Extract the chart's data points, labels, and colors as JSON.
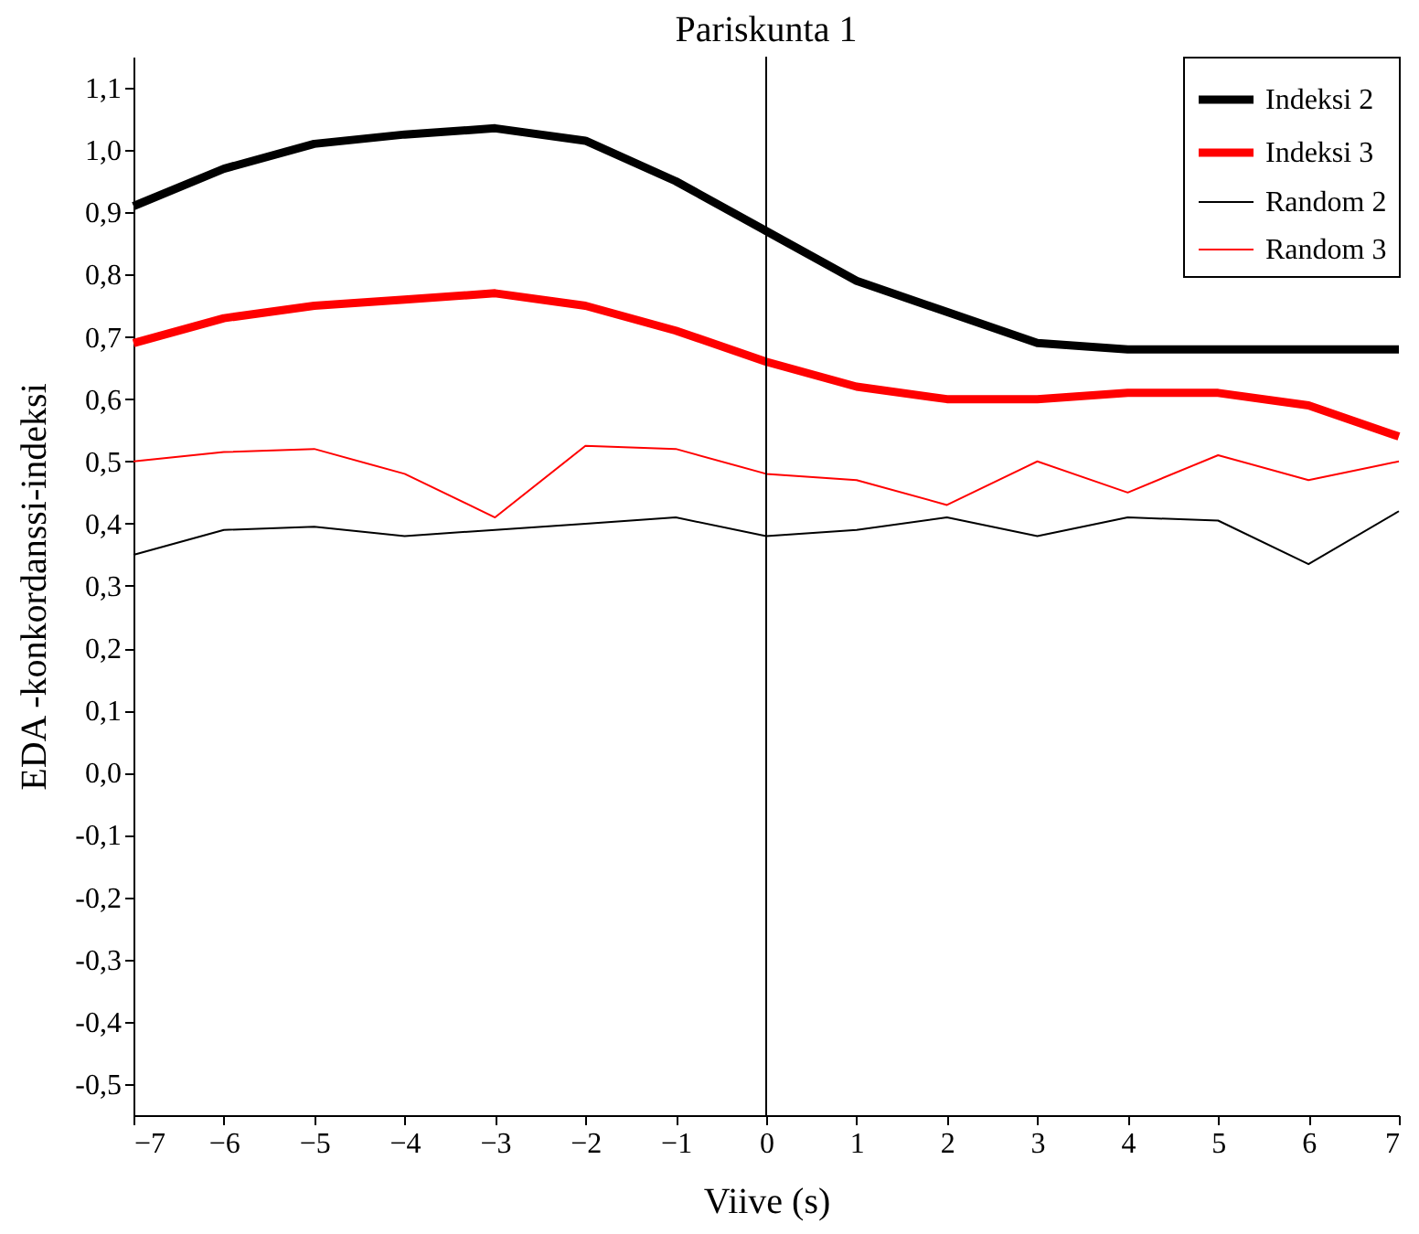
{
  "chart_data": {
    "type": "line",
    "title": "Pariskunta 1",
    "xlabel": "Viive (s)",
    "ylabel": "EDA -konkordanssi-indeksi",
    "x": [
      -7,
      -6,
      -5,
      -4,
      -3,
      -2,
      -1,
      0,
      1,
      2,
      3,
      4,
      5,
      6,
      7
    ],
    "series": [
      {
        "name": "Indeksi 2",
        "color": "#000000",
        "values": [
          0.91,
          0.97,
          1.01,
          1.025,
          1.035,
          1.015,
          0.95,
          0.87,
          0.79,
          0.74,
          0.69,
          0.68,
          0.68,
          0.68,
          0.68
        ]
      },
      {
        "name": "Indeksi 3",
        "color": "#ff0000",
        "values": [
          0.69,
          0.73,
          0.75,
          0.76,
          0.77,
          0.75,
          0.71,
          0.66,
          0.62,
          0.6,
          0.6,
          0.61,
          0.61,
          0.59,
          0.54
        ]
      },
      {
        "name": "Random 2",
        "color": "#000000",
        "values": [
          0.35,
          0.39,
          0.395,
          0.38,
          0.39,
          0.4,
          0.41,
          0.38,
          0.39,
          0.41,
          0.38,
          0.41,
          0.405,
          0.335,
          0.42
        ]
      },
      {
        "name": "Random 3",
        "color": "#ff0000",
        "values": [
          0.5,
          0.515,
          0.52,
          0.48,
          0.41,
          0.525,
          0.52,
          0.48,
          0.47,
          0.43,
          0.5,
          0.45,
          0.51,
          0.47,
          0.5
        ]
      }
    ],
    "xlim": [
      -7,
      7
    ],
    "xticks": [
      -7,
      -6,
      -5,
      -4,
      -3,
      -2,
      -1,
      0,
      1,
      2,
      3,
      4,
      5,
      6,
      7
    ],
    "ylim": [
      -0.55,
      1.15
    ],
    "yticks": [
      {
        "value": 1.1,
        "label": "1,1"
      },
      {
        "value": 1.0,
        "label": "1,0"
      },
      {
        "value": 0.9,
        "label": "0,9"
      },
      {
        "value": 0.8,
        "label": "0,8"
      },
      {
        "value": 0.7,
        "label": "0,7"
      },
      {
        "value": 0.6,
        "label": "0,6"
      },
      {
        "value": 0.5,
        "label": "0,5"
      },
      {
        "value": 0.4,
        "label": "0,4"
      },
      {
        "value": 0.3,
        "label": "0,3"
      },
      {
        "value": 0.2,
        "label": "0,2"
      },
      {
        "value": 0.1,
        "label": "0,1"
      },
      {
        "value": 0.0,
        "label": "0,0"
      },
      {
        "value": -0.1,
        "label": "-0,1"
      },
      {
        "value": -0.2,
        "label": "-0,2"
      },
      {
        "value": -0.3,
        "label": "-0,3"
      },
      {
        "value": -0.4,
        "label": "-0,4"
      },
      {
        "value": -0.5,
        "label": "-0,5"
      }
    ],
    "ref_lines": [
      {
        "axis": "x",
        "value": 0,
        "color": "#000000"
      }
    ],
    "legend": "top right",
    "grid": false,
    "marker": "none",
    "line_style": "solid"
  }
}
